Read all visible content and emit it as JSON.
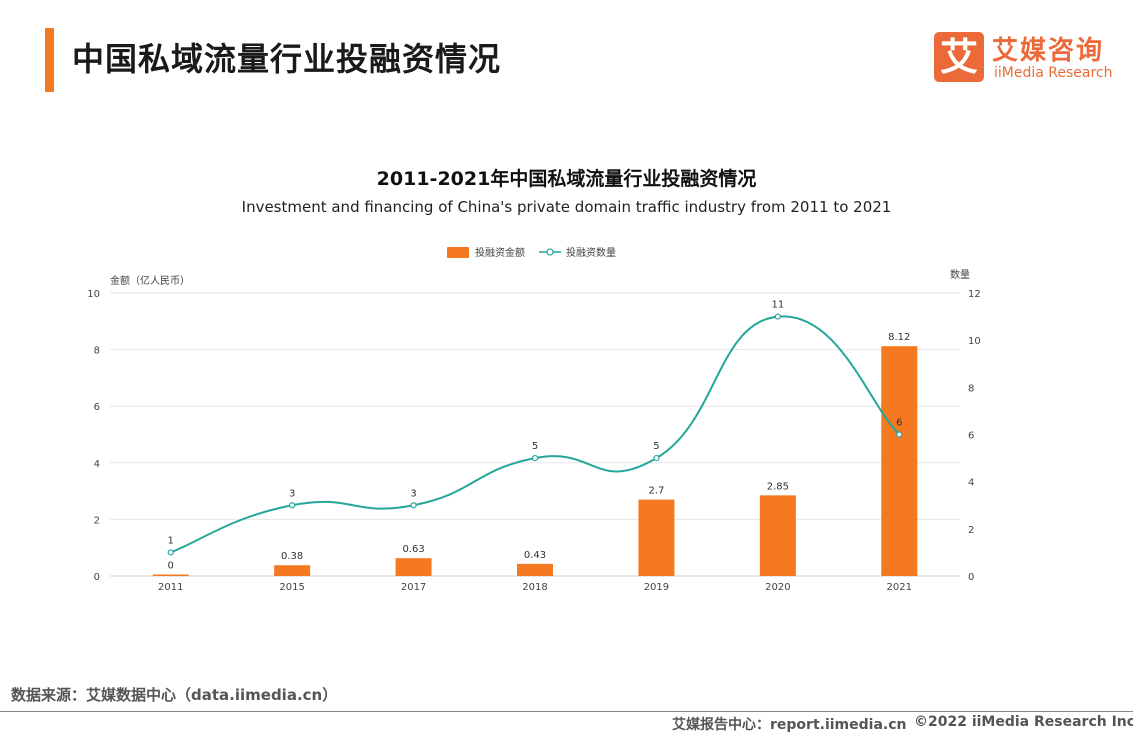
{
  "header": {
    "title": "中国私域流量行业投融资情况",
    "logo_mark": "艾",
    "logo_cn": "艾媒咨询",
    "logo_en": "iiMedia Research"
  },
  "colors": {
    "accent": "#f47920",
    "bar": "#f47920",
    "line": "#26a69a",
    "logo": "#ec6a3a"
  },
  "chart_data": {
    "type": "bar",
    "title": "2011-2021年中国私域流量行业投融资情况",
    "subtitle": "Investment and financing of China's private domain traffic industry from 2011 to 2021",
    "categories": [
      "2011",
      "2015",
      "2017",
      "2018",
      "2019",
      "2020",
      "2021"
    ],
    "series": [
      {
        "name": "投融资金额",
        "type": "bar",
        "axis": "left",
        "values": [
          0,
          0.38,
          0.63,
          0.43,
          2.7,
          2.85,
          8.12
        ],
        "labels": [
          "0",
          "0.38",
          "0.63",
          "0.43",
          "2.7",
          "2.85",
          "8.12"
        ]
      },
      {
        "name": "投融资数量",
        "type": "line",
        "axis": "right",
        "smooth": true,
        "values": [
          1,
          3,
          3,
          5,
          5,
          11,
          6
        ],
        "labels": [
          "1",
          "3",
          "3",
          "5",
          "5",
          "11",
          "6"
        ]
      }
    ],
    "ylabel": "金额（亿人民币）",
    "y2label": "数量",
    "ylim": [
      0,
      10
    ],
    "y2lim": [
      0,
      12
    ],
    "yticks": [
      "0",
      "2",
      "4",
      "6",
      "8",
      "10"
    ],
    "y2ticks": [
      "0",
      "2",
      "4",
      "6",
      "8",
      "10",
      "12"
    ],
    "grid": true,
    "legend": "top-center"
  },
  "footer": {
    "source": "数据来源：艾媒数据中心（data.iimedia.cn）",
    "report_center": "艾媒报告中心：report.iimedia.cn",
    "copyright": "©2022  iiMedia Research  Inc"
  }
}
